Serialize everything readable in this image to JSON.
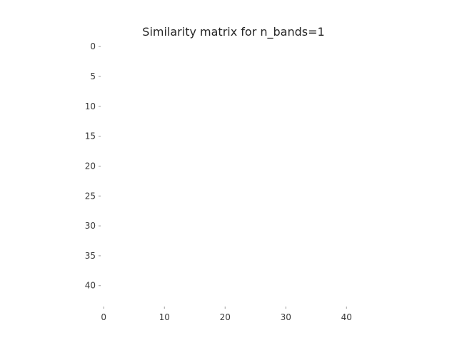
{
  "chart_data": {
    "type": "heatmap",
    "title": "Similarity matrix for n_bands=1",
    "xlabel": "",
    "ylabel": "",
    "rows": 44,
    "cols": 44,
    "xlim": [
      -0.5,
      43.5
    ],
    "ylim": [
      -0.5,
      43.5
    ],
    "y_axis_inverted": true,
    "x_ticks": [
      0,
      10,
      20,
      30,
      40
    ],
    "y_ticks": [
      0,
      5,
      10,
      15,
      20,
      25,
      30,
      35,
      40
    ],
    "x_tick_labels": [
      "0",
      "10",
      "20",
      "30",
      "40"
    ],
    "y_tick_labels": [
      "0",
      "5",
      "10",
      "15",
      "20",
      "25",
      "30",
      "35",
      "40"
    ],
    "matrix_fill": 1.0,
    "colors": {
      "matrix_color": "#ffffff",
      "text": "#262626",
      "tick": "#9a9a9a"
    },
    "grid": false
  }
}
